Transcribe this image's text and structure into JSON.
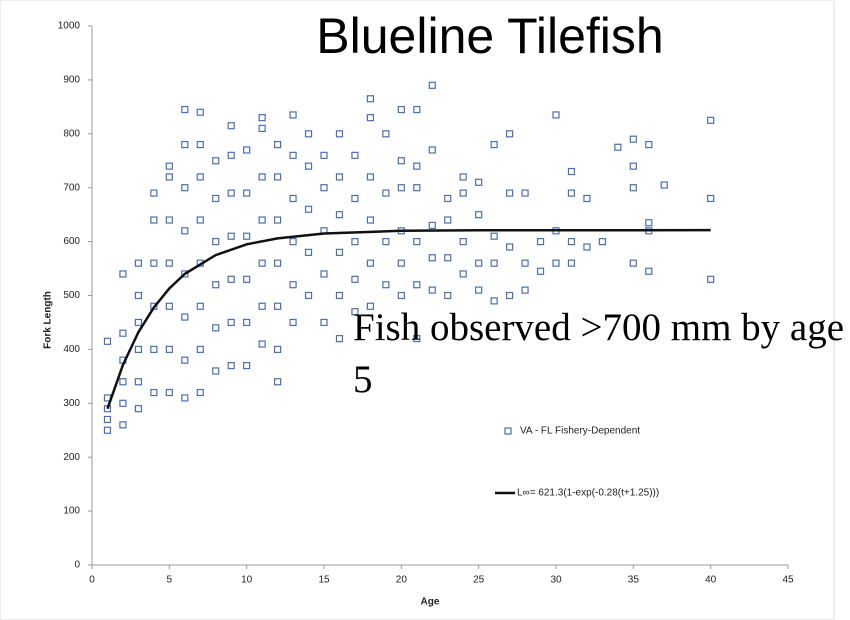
{
  "chart_data": {
    "type": "scatter",
    "title": "Blueline Tilefish",
    "annotation": "Fish observed >700 mm by age 5",
    "x_label": "Age",
    "y_label": "Fork Length",
    "xlim": [
      0,
      45
    ],
    "xticks": [
      0,
      5,
      10,
      15,
      20,
      25,
      30,
      35,
      40,
      45
    ],
    "ylim": [
      0,
      1000
    ],
    "yticks": [
      0,
      100,
      200,
      300,
      400,
      500,
      600,
      700,
      800,
      900,
      1000
    ],
    "series": [
      {
        "name": "VA - FL Fishery-Dependent",
        "type": "scatter",
        "color": "#4a6fb5",
        "x": [
          1,
          1,
          1,
          1,
          1,
          2,
          2,
          2,
          2,
          2,
          2,
          3,
          3,
          3,
          3,
          3,
          3,
          4,
          4,
          4,
          4,
          4,
          4,
          5,
          5,
          5,
          5,
          5,
          5,
          5,
          6,
          6,
          6,
          6,
          6,
          6,
          6,
          6,
          7,
          7,
          7,
          7,
          7,
          7,
          7,
          7,
          8,
          8,
          8,
          8,
          8,
          8,
          9,
          9,
          9,
          9,
          9,
          9,
          9,
          10,
          10,
          10,
          10,
          10,
          10,
          11,
          11,
          11,
          11,
          11,
          11,
          11,
          12,
          12,
          12,
          12,
          12,
          12,
          12,
          13,
          13,
          13,
          13,
          13,
          13,
          14,
          14,
          14,
          14,
          14,
          15,
          15,
          15,
          15,
          15,
          16,
          16,
          16,
          16,
          16,
          16,
          17,
          17,
          17,
          17,
          17,
          18,
          18,
          18,
          18,
          18,
          18,
          19,
          19,
          19,
          19,
          20,
          20,
          20,
          20,
          20,
          20,
          21,
          21,
          21,
          21,
          21,
          21,
          22,
          22,
          22,
          22,
          22,
          23,
          23,
          23,
          23,
          24,
          24,
          24,
          24,
          25,
          25,
          25,
          25,
          26,
          26,
          26,
          26,
          27,
          27,
          27,
          27,
          28,
          28,
          28,
          29,
          29,
          30,
          30,
          30,
          31,
          31,
          31,
          31,
          32,
          32,
          33,
          34,
          35,
          35,
          35,
          35,
          36,
          36,
          36,
          36,
          37,
          40,
          40,
          40
        ],
        "values": [
          250,
          270,
          290,
          310,
          415,
          260,
          300,
          340,
          380,
          430,
          540,
          290,
          340,
          400,
          450,
          500,
          560,
          320,
          400,
          480,
          560,
          640,
          690,
          320,
          400,
          480,
          560,
          640,
          720,
          740,
          310,
          380,
          460,
          540,
          620,
          700,
          780,
          845,
          320,
          400,
          480,
          560,
          640,
          720,
          780,
          840,
          360,
          440,
          520,
          600,
          680,
          750,
          370,
          450,
          530,
          610,
          690,
          760,
          815,
          370,
          450,
          530,
          610,
          690,
          770,
          410,
          480,
          560,
          640,
          720,
          810,
          830,
          340,
          400,
          480,
          560,
          640,
          720,
          780,
          450,
          520,
          600,
          680,
          760,
          835,
          500,
          580,
          660,
          740,
          800,
          450,
          540,
          620,
          700,
          760,
          420,
          500,
          580,
          650,
          720,
          800,
          470,
          530,
          600,
          680,
          760,
          480,
          560,
          640,
          720,
          830,
          865,
          520,
          600,
          690,
          800,
          500,
          560,
          620,
          700,
          750,
          845,
          420,
          520,
          600,
          700,
          740,
          845,
          510,
          570,
          630,
          770,
          890,
          500,
          570,
          640,
          680,
          540,
          600,
          690,
          720,
          510,
          560,
          650,
          710,
          490,
          560,
          610,
          780,
          500,
          590,
          690,
          800,
          510,
          560,
          690,
          545,
          600,
          560,
          620,
          835,
          560,
          600,
          690,
          730,
          590,
          680,
          600,
          775,
          560,
          700,
          740,
          790,
          545,
          620,
          635,
          780,
          705,
          530,
          680,
          825
        ]
      },
      {
        "name": "L∞= 621.3(1-exp(-0.28(t+1.25)))",
        "type": "line",
        "color": "#111111",
        "x": [
          1,
          2,
          3,
          4,
          5,
          6,
          8,
          10,
          12,
          15,
          20,
          25,
          30,
          40
        ],
        "values": [
          290,
          371,
          432,
          478,
          513,
          540,
          575,
          595,
          606,
          615,
          620,
          621,
          621,
          621.3
        ]
      }
    ]
  }
}
